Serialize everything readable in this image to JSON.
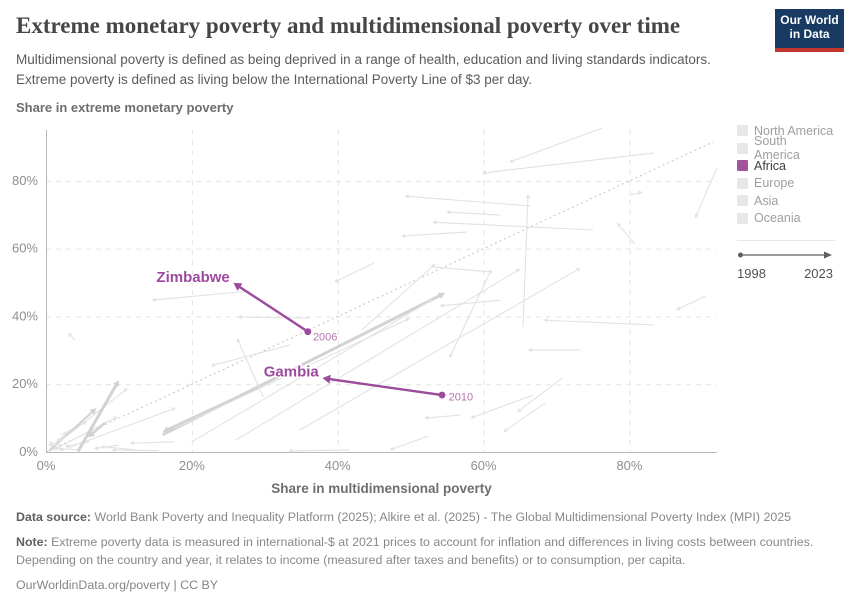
{
  "header": {
    "title": "Extreme monetary poverty and multidimensional poverty over time",
    "subtitle": "Multidimensional poverty is defined as being deprived in a range of health, education and living standards indicators. Extreme poverty is defined as living below the International Poverty Line of $3 per day.",
    "logo_line1": "Our World",
    "logo_line2": "in Data"
  },
  "colors": {
    "purple": "#9c4a9c",
    "purple_light": "#b576af",
    "legend_purple": "#a2559c",
    "grid": "#e3e3e3",
    "axis": "#b9b9b9",
    "tick": "#8f8f8f",
    "axis_title": "#6e6e6e",
    "arrow": "#e2e2e2",
    "arrow_bold": "#d2d2d2",
    "dotted": "#c9c9c9",
    "legend_gray_swatch": "#e7e7e7",
    "legend_gray_text": "#9e9e9e",
    "legend_dark_text": "#3d3d3d",
    "logo_navy": "#183a63",
    "logo_red": "#c0362c",
    "timeline": "#5f5f5f"
  },
  "chart_data": {
    "type": "scatter",
    "title": "Extreme monetary poverty and multidimensional poverty over time",
    "xlabel": "Share in multidimensional poverty",
    "ylabel": "Share in extreme monetary poverty",
    "xlim": [
      0,
      92
    ],
    "ylim": [
      0,
      95
    ],
    "x_ticks": [
      0,
      20,
      40,
      60,
      80
    ],
    "y_ticks": [
      0,
      20,
      40,
      60,
      80
    ],
    "tick_suffix": "%",
    "grid": true,
    "legend_position": "right",
    "time_range": {
      "start": 1998,
      "end": 2023
    },
    "regions": [
      {
        "name": "North America",
        "highlighted": false
      },
      {
        "name": "South America",
        "highlighted": false
      },
      {
        "name": "Africa",
        "highlighted": true
      },
      {
        "name": "Europe",
        "highlighted": false
      },
      {
        "name": "Asia",
        "highlighted": false
      },
      {
        "name": "Oceania",
        "highlighted": false
      }
    ],
    "highlighted_series": [
      {
        "name": "Zimbabwe",
        "region": "Africa",
        "start_year_label": "2006",
        "start": [
          35.9,
          35.5
        ],
        "end": [
          25.7,
          49.9
        ],
        "name_label_pos": [
          25.2,
          50.2
        ],
        "year_label_pos": [
          36.6,
          32.9
        ]
      },
      {
        "name": "Gambia",
        "region": "Africa",
        "start_year_label": "2010",
        "start": [
          54.3,
          16.8
        ],
        "end": [
          37.9,
          21.8
        ],
        "name_label_pos": [
          37.4,
          22.3
        ],
        "year_label_pos": [
          55.2,
          15.2
        ]
      }
    ],
    "identity_line": [
      [
        0,
        0
      ],
      [
        91.5,
        91.5
      ]
    ],
    "background_arrows": [
      [
        1.5,
        0.5,
        0.5,
        3.2
      ],
      [
        0.5,
        1,
        3,
        6
      ],
      [
        2,
        0.3,
        1.6,
        4.2
      ],
      [
        0.3,
        2.2,
        2.6,
        0.5
      ],
      [
        4.5,
        0.6,
        1,
        1.2
      ],
      [
        6,
        3,
        2.6,
        1.6
      ],
      [
        10,
        2,
        6.6,
        1
      ],
      [
        12.5,
        0.6,
        7.5,
        1.6
      ],
      [
        15.5,
        0.4,
        9,
        0.6
      ],
      [
        17.6,
        3,
        11.5,
        2.6
      ],
      [
        2,
        5,
        5.6,
        9
      ],
      [
        1,
        0.6,
        9.8,
        10.4
      ],
      [
        0.4,
        0.2,
        6.9,
        12.9,
        2
      ],
      [
        3,
        1.2,
        17.8,
        13
      ],
      [
        1,
        1.6,
        11.2,
        18.8
      ],
      [
        4.4,
        0.2,
        10,
        21.2,
        3
      ],
      [
        8.1,
        8.6,
        5.8,
        4.4,
        2.5
      ],
      [
        16,
        5.1,
        54.7,
        46.9,
        3
      ],
      [
        29,
        18.9,
        16,
        5.9,
        3
      ],
      [
        33.5,
        31.6,
        22.6,
        25.4
      ],
      [
        29.8,
        16.2,
        26.2,
        33.6
      ],
      [
        28,
        47.5,
        14.5,
        44.8
      ],
      [
        36.2,
        39.5,
        26.3,
        39.8
      ],
      [
        45,
        55.8,
        39.5,
        50.1
      ],
      [
        66.4,
        72.6,
        49.2,
        75.5
      ],
      [
        75,
        65.5,
        53,
        67.8
      ],
      [
        57.6,
        64.9,
        48.7,
        63.7
      ],
      [
        65.4,
        36.9,
        66.1,
        76.1
      ],
      [
        60.9,
        53.1,
        55.3,
        27.7
      ],
      [
        83.3,
        37.5,
        68.2,
        38.9
      ],
      [
        73.3,
        30.1,
        66.1,
        30.1
      ],
      [
        70.8,
        21.8,
        64.6,
        11.8
      ],
      [
        56.8,
        10.9,
        51.9,
        10
      ],
      [
        76.3,
        95.6,
        63.5,
        85.5
      ],
      [
        83.3,
        88.2,
        59.8,
        82.3
      ],
      [
        92,
        83.8,
        89,
        69
      ],
      [
        80.7,
        61.4,
        78.3,
        67.6
      ],
      [
        90.4,
        46,
        86.4,
        41.9
      ],
      [
        80.1,
        75.8,
        81.8,
        76.7
      ],
      [
        62.3,
        69.9,
        54.9,
        70.8
      ],
      [
        20,
        3,
        53,
        45
      ],
      [
        26,
        3.5,
        65,
        54
      ],
      [
        17.7,
        7.1,
        49.9,
        39.5
      ],
      [
        34.8,
        6.5,
        73.3,
        54.3
      ],
      [
        41.7,
        0.6,
        33.2,
        0.3
      ],
      [
        52.4,
        4.7,
        47.1,
        0.6
      ],
      [
        68.5,
        14.5,
        62.7,
        5.9
      ],
      [
        66.8,
        16.8,
        58.2,
        10
      ],
      [
        53,
        54.6,
        61.3,
        53.1
      ],
      [
        4,
        33,
        3,
        35.1
      ],
      [
        43.3,
        36,
        53.4,
        55.5
      ],
      [
        62.3,
        44.8,
        54,
        43.1
      ]
    ]
  },
  "footer": {
    "source_label": "Data source:",
    "source_text": " World Bank Poverty and Inequality Platform (2025); Alkire et al. (2025) - The Global Multidimensional Poverty Index (MPI) 2025",
    "note_label": "Note:",
    "note_text": " Extreme poverty data is measured in international-$ at 2021 prices to account for inflation and differences in living costs between countries. Depending on the country and year, it relates to income (measured after taxes and benefits) or to consumption, per capita.",
    "citation": "OurWorldinData.org/poverty | CC BY"
  }
}
